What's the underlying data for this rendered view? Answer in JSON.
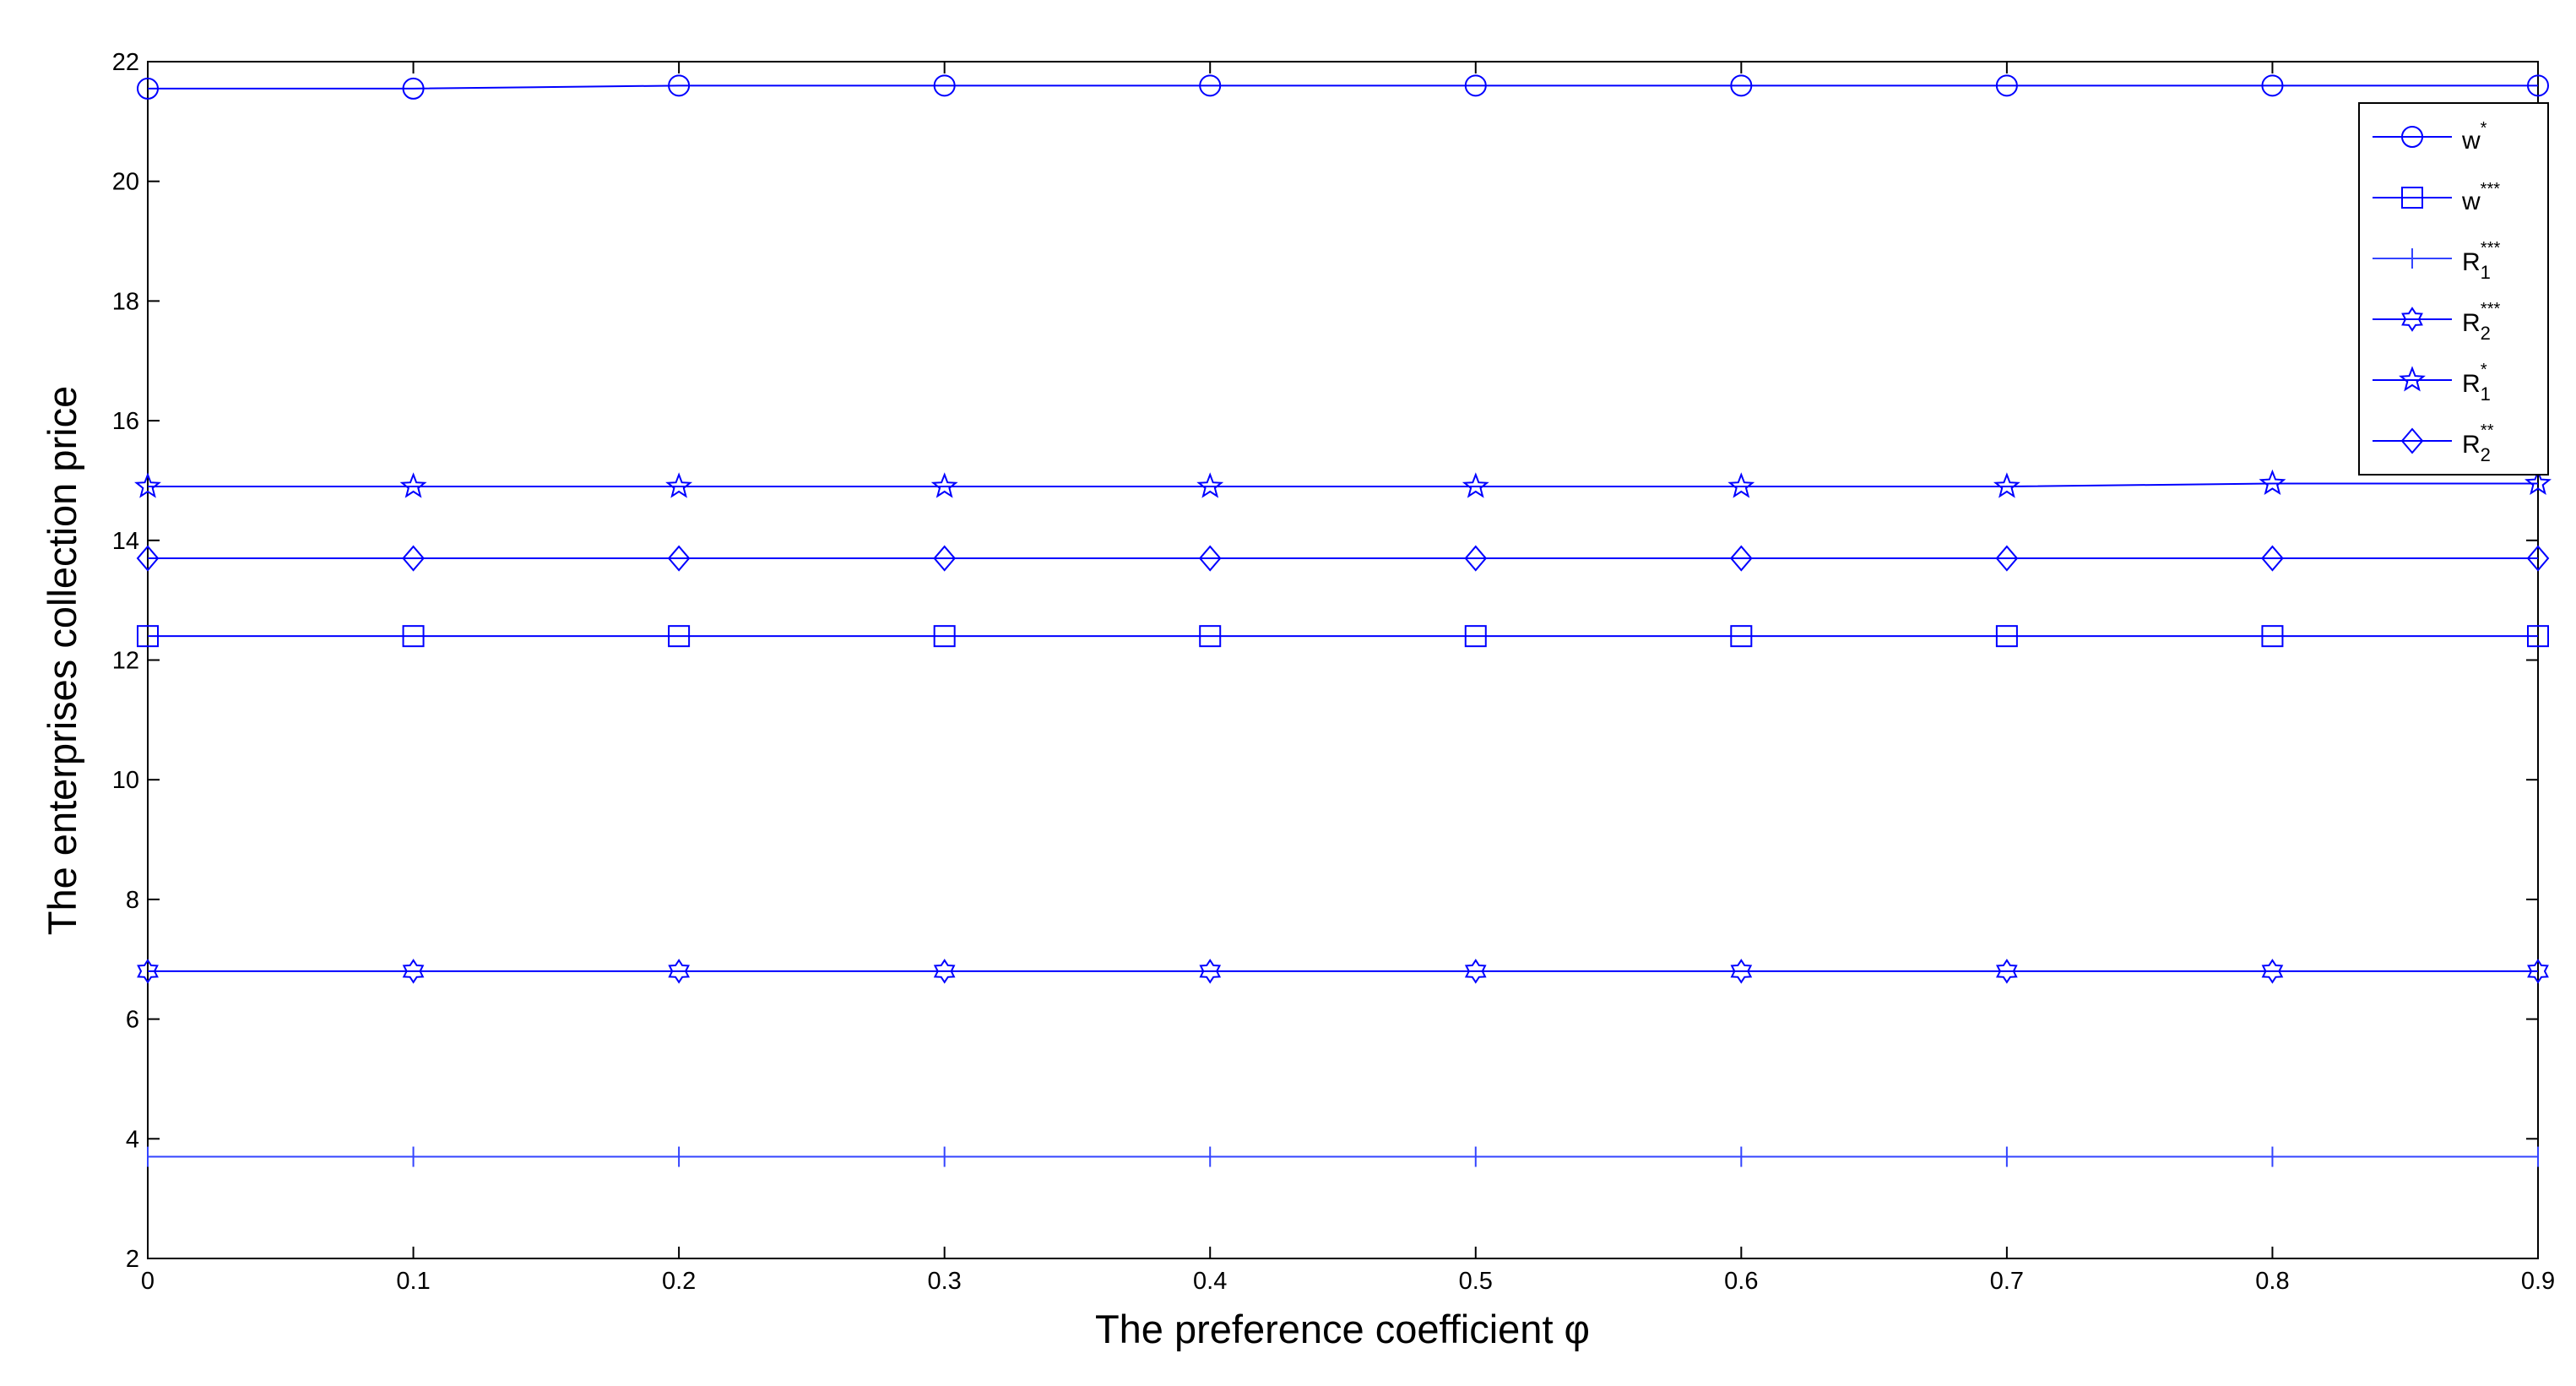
{
  "chart_data": {
    "type": "line",
    "x_label": "The preference coefficient φ",
    "y_label": "The enterprises collection price",
    "x": [
      0,
      0.1,
      0.2,
      0.3,
      0.4,
      0.5,
      0.6,
      0.7,
      0.8,
      0.9
    ],
    "xlim": [
      0,
      0.9
    ],
    "xticks": [
      0,
      0.1,
      0.2,
      0.3,
      0.4,
      0.5,
      0.6,
      0.7,
      0.8,
      0.9
    ],
    "ylim": [
      2,
      22
    ],
    "yticks": [
      2,
      4,
      6,
      8,
      10,
      12,
      14,
      16,
      18,
      20,
      22
    ],
    "grid": false,
    "legend": "top-right",
    "series": [
      {
        "name": "w*",
        "marker": "circle",
        "color": "#0000ff",
        "values": [
          21.55,
          21.55,
          21.6,
          21.6,
          21.6,
          21.6,
          21.6,
          21.6,
          21.6,
          21.6
        ]
      },
      {
        "name": "w***",
        "marker": "square",
        "color": "#0000ff",
        "values": [
          12.4,
          12.4,
          12.4,
          12.4,
          12.4,
          12.4,
          12.4,
          12.4,
          12.4,
          12.4
        ]
      },
      {
        "name": "R1***",
        "marker": "vline",
        "color": "#3344ff",
        "values": [
          3.7,
          3.7,
          3.7,
          3.7,
          3.7,
          3.7,
          3.7,
          3.7,
          3.7,
          3.7
        ]
      },
      {
        "name": "R2***",
        "marker": "hexagram",
        "color": "#0000ff",
        "values": [
          6.8,
          6.8,
          6.8,
          6.8,
          6.8,
          6.8,
          6.8,
          6.8,
          6.8,
          6.8
        ]
      },
      {
        "name": "R1*",
        "marker": "pentagram",
        "color": "#0000ff",
        "values": [
          14.9,
          14.9,
          14.9,
          14.9,
          14.9,
          14.9,
          14.9,
          14.9,
          14.95,
          14.95
        ]
      },
      {
        "name": "R2**",
        "marker": "diamond",
        "color": "#0000ff",
        "values": [
          13.7,
          13.7,
          13.7,
          13.7,
          13.7,
          13.7,
          13.7,
          13.7,
          13.7,
          13.7
        ]
      }
    ]
  }
}
